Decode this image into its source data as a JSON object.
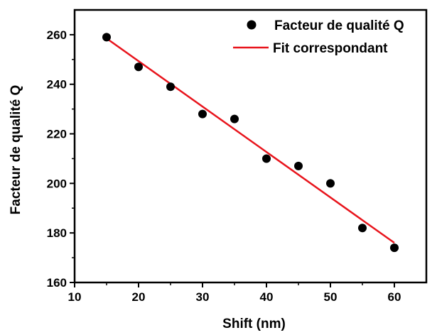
{
  "chart_data": {
    "type": "scatter",
    "xlabel": "Shift (nm)",
    "ylabel": "Facteur de qualité Q",
    "xlim": [
      10,
      65
    ],
    "ylim": [
      160,
      270
    ],
    "xticks": [
      10,
      20,
      30,
      40,
      50,
      60
    ],
    "yticks": [
      160,
      180,
      200,
      220,
      240,
      260
    ],
    "xtick_labels": [
      "10",
      "20",
      "30",
      "40",
      "50",
      "60"
    ],
    "ytick_labels": [
      "160",
      "180",
      "200",
      "220",
      "240",
      "260"
    ],
    "grid": false,
    "legend_position": "top-right",
    "series": [
      {
        "name": "Facteur de qualité Q",
        "kind": "scatter",
        "color": "#000000",
        "x": [
          15,
          20,
          25,
          30,
          35,
          40,
          45,
          50,
          55,
          60
        ],
        "y": [
          259,
          247,
          239,
          228,
          226,
          210,
          207,
          200,
          182,
          174
        ]
      },
      {
        "name": "Fit correspondant",
        "kind": "line",
        "color": "#e8141c",
        "x": [
          15,
          60
        ],
        "y": [
          258.5,
          176
        ]
      }
    ]
  }
}
